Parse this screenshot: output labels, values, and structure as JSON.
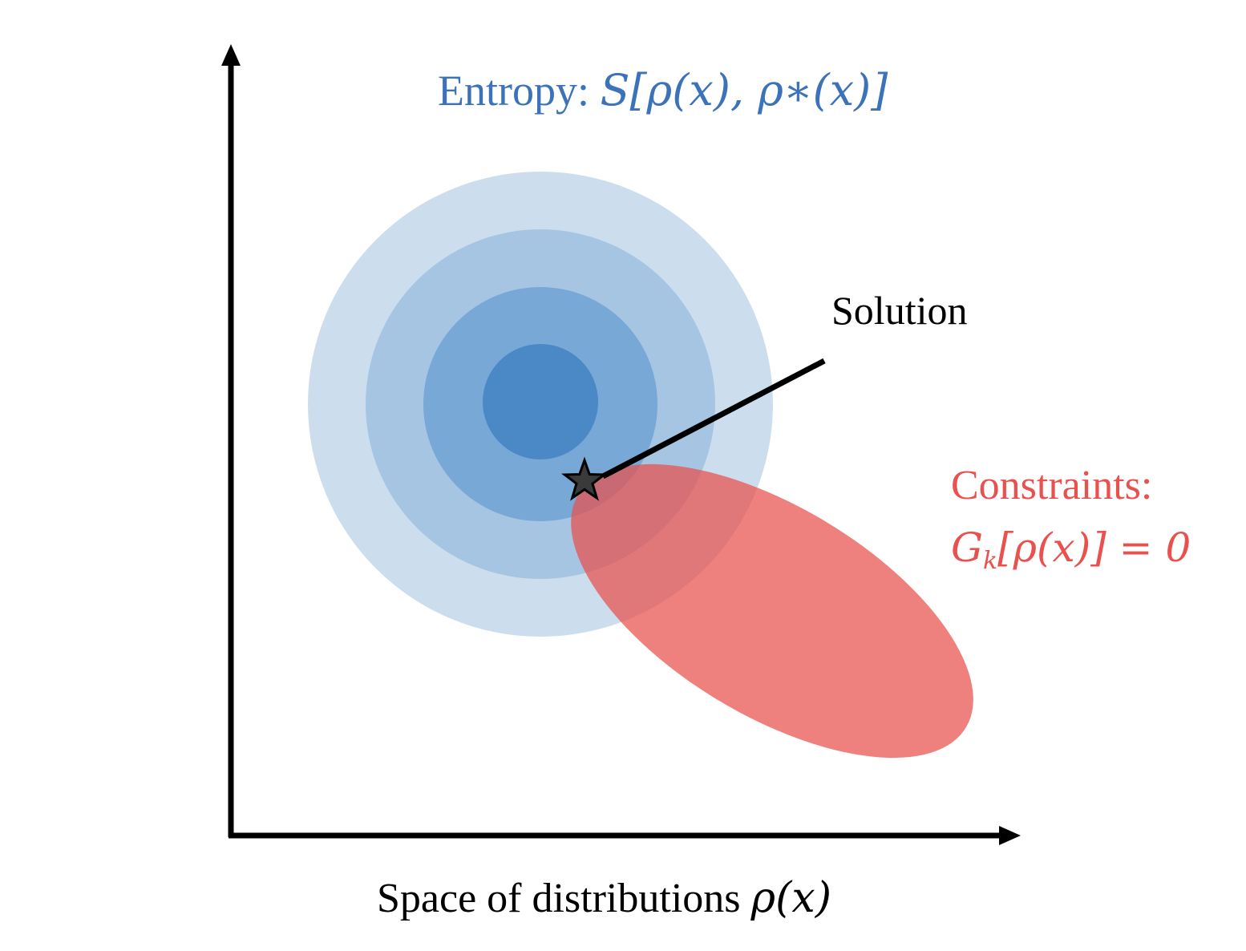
{
  "colors": {
    "entropy_blue": "#3b72b9",
    "constraint_red": "#e8514e",
    "ring_outer": "#ccdeee",
    "ring_2": "#a6c5e2",
    "ring_3": "#78a8d6",
    "ring_inner": "#4b89c6",
    "constraint_fill": "#e8504c",
    "axis": "#000000",
    "star_fill": "#3a3a3a"
  },
  "entropy": {
    "label": "Entropy: ",
    "formula": "S[ρ(x), ρ∗(x)]"
  },
  "solution": {
    "label": "Solution",
    "marker_icon": "star-icon"
  },
  "constraints": {
    "label": "Constraints:",
    "formula_G": "G",
    "formula_sub": "k",
    "formula_rest": "[ρ(x)] = 0"
  },
  "x_axis": {
    "label": "Space of distributions ",
    "formula": "ρ(x)"
  }
}
